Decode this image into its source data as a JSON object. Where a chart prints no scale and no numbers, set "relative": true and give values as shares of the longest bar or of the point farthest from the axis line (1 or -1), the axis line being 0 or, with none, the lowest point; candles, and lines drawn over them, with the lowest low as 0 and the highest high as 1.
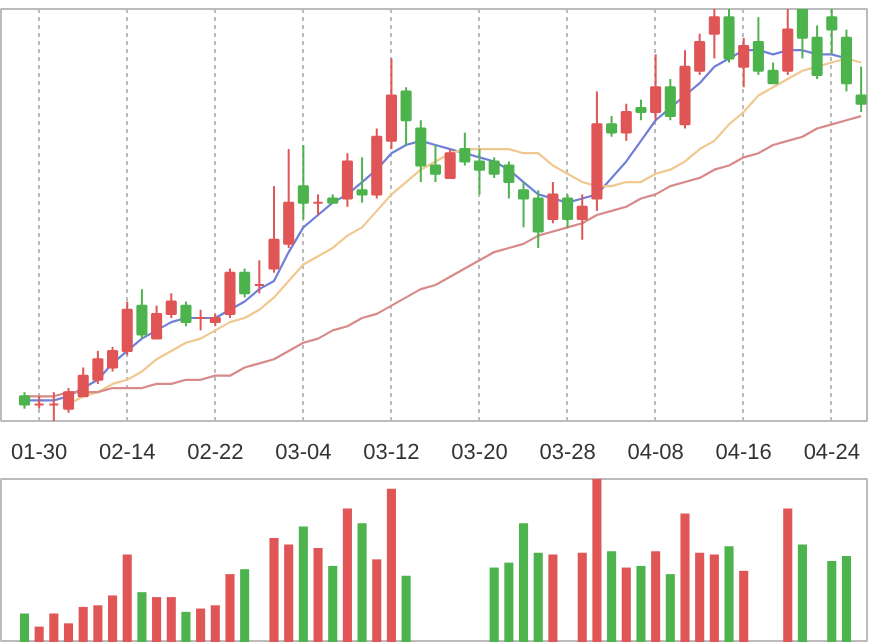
{
  "chart_data": [
    {
      "type": "candlestick",
      "relative": true,
      "tick_labels": "x",
      "grid": "x",
      "categories": [
        null,
        "01-30",
        null,
        null,
        null,
        null,
        null,
        "02-14",
        null,
        null,
        null,
        null,
        null,
        "02-22",
        null,
        null,
        null,
        null,
        null,
        "03-04",
        null,
        null,
        null,
        null,
        null,
        "03-12",
        null,
        null,
        null,
        null,
        null,
        "03-20",
        null,
        null,
        null,
        null,
        null,
        "03-28",
        null,
        null,
        null,
        null,
        null,
        "04-08",
        null,
        null,
        null,
        null,
        null,
        "04-16",
        null,
        null,
        null,
        null,
        null,
        "04-24",
        null,
        null
      ],
      "ohlc": [
        [
          0.06,
          0.07,
          0.03,
          0.04
        ],
        [
          0.04,
          0.06,
          0.03,
          0.04
        ],
        [
          0.04,
          0.07,
          0,
          0.04
        ],
        [
          0.03,
          0.08,
          0.02,
          0.07
        ],
        [
          0.06,
          0.13,
          0.06,
          0.11
        ],
        [
          0.1,
          0.17,
          0.09,
          0.15
        ],
        [
          0.13,
          0.18,
          0.12,
          0.17
        ],
        [
          0.17,
          0.29,
          0.16,
          0.27
        ],
        [
          0.28,
          0.32,
          0.2,
          0.21
        ],
        [
          0.2,
          0.28,
          0.2,
          0.26
        ],
        [
          0.26,
          0.31,
          0.25,
          0.29
        ],
        [
          0.28,
          0.29,
          0.23,
          0.24
        ],
        [
          0.25,
          0.27,
          0.22,
          0.25
        ],
        [
          0.24,
          0.26,
          0.23,
          0.25
        ],
        [
          0.26,
          0.37,
          0.25,
          0.36
        ],
        [
          0.36,
          0.37,
          0.3,
          0.31
        ],
        [
          0.33,
          0.39,
          0.31,
          0.33
        ],
        [
          0.37,
          0.57,
          0.36,
          0.44
        ],
        [
          0.43,
          0.66,
          0.42,
          0.53
        ],
        [
          0.57,
          0.67,
          0.49,
          0.53
        ],
        [
          0.53,
          0.55,
          0.5,
          0.53
        ],
        [
          0.54,
          0.55,
          0.53,
          0.53
        ],
        [
          0.54,
          0.65,
          0.52,
          0.63
        ],
        [
          0.56,
          0.64,
          0.53,
          0.55
        ],
        [
          0.55,
          0.71,
          0.54,
          0.69
        ],
        [
          0.68,
          0.88,
          0.66,
          0.79
        ],
        [
          0.8,
          0.81,
          0.67,
          0.73
        ],
        [
          0.71,
          0.73,
          0.58,
          0.62
        ],
        [
          0.62,
          0.67,
          0.58,
          0.6
        ],
        [
          0.59,
          0.66,
          0.59,
          0.65
        ],
        [
          0.66,
          0.7,
          0.62,
          0.63
        ],
        [
          0.63,
          0.66,
          0.55,
          0.61
        ],
        [
          0.63,
          0.64,
          0.59,
          0.6
        ],
        [
          0.62,
          0.63,
          0.54,
          0.58
        ],
        [
          0.56,
          0.58,
          0.47,
          0.54
        ],
        [
          0.54,
          0.56,
          0.42,
          0.46
        ],
        [
          0.49,
          0.58,
          0.48,
          0.55
        ],
        [
          0.54,
          0.55,
          0.47,
          0.49
        ],
        [
          0.49,
          0.55,
          0.44,
          0.52
        ],
        [
          0.54,
          0.8,
          0.51,
          0.72
        ],
        [
          0.72,
          0.74,
          0.69,
          0.7
        ],
        [
          0.7,
          0.77,
          0.68,
          0.75
        ],
        [
          0.76,
          0.78,
          0.73,
          0.75
        ],
        [
          0.75,
          0.89,
          0.73,
          0.81
        ],
        [
          0.81,
          0.83,
          0.73,
          0.74
        ],
        [
          0.72,
          0.9,
          0.71,
          0.86
        ],
        [
          0.85,
          0.94,
          0.84,
          0.92
        ],
        [
          0.94,
          1.0,
          0.88,
          0.98
        ],
        [
          0.98,
          1.0,
          0.87,
          0.88
        ],
        [
          0.86,
          0.93,
          0.81,
          0.91
        ],
        [
          0.92,
          0.98,
          0.84,
          0.85
        ],
        [
          0.85,
          0.87,
          0.82,
          0.82
        ],
        [
          0.85,
          1.0,
          0.84,
          0.95
        ],
        [
          1.0,
          1.0,
          0.88,
          0.93
        ],
        [
          0.93,
          0.96,
          0.83,
          0.84
        ],
        [
          0.98,
          1.0,
          0.89,
          0.95
        ],
        [
          0.93,
          0.95,
          0.8,
          0.82
        ],
        [
          0.79,
          0.86,
          0.75,
          0.77
        ]
      ],
      "colors": [
        "#4db34d",
        "#e05555",
        "#e05555",
        "#e05555",
        "#e05555",
        "#e05555",
        "#e05555",
        "#e05555",
        "#4db34d",
        "#e05555",
        "#e05555",
        "#4db34d",
        "#e05555",
        "#e05555",
        "#e05555",
        "#4db34d",
        "#e05555",
        "#e05555",
        "#e05555",
        "#4db34d",
        "#e05555",
        "#4db34d",
        "#e05555",
        "#4db34d",
        "#e05555",
        "#e05555",
        "#4db34d",
        "#4db34d",
        "#4db34d",
        "#e05555",
        "#4db34d",
        "#4db34d",
        "#4db34d",
        "#4db34d",
        "#4db34d",
        "#4db34d",
        "#e05555",
        "#4db34d",
        "#e05555",
        "#e05555",
        "#4db34d",
        "#e05555",
        "#4db34d",
        "#e05555",
        "#4db34d",
        "#e05555",
        "#e05555",
        "#e05555",
        "#4db34d",
        "#e05555",
        "#4db34d",
        "#4db34d",
        "#e05555",
        "#4db34d",
        "#4db34d",
        "#4db34d",
        "#4db34d",
        "#4db34d"
      ],
      "series": [
        {
          "type": "line",
          "color": "#7080d8",
          "values": [
            0.05,
            0.05,
            0.05,
            0.06,
            0.08,
            0.1,
            0.14,
            0.17,
            0.2,
            0.22,
            0.24,
            0.25,
            0.25,
            0.25,
            0.27,
            0.29,
            0.32,
            0.34,
            0.41,
            0.47,
            0.5,
            0.53,
            0.55,
            0.58,
            0.61,
            0.65,
            0.67,
            0.68,
            0.67,
            0.66,
            0.65,
            0.64,
            0.63,
            0.61,
            0.58,
            0.55,
            0.54,
            0.53,
            0.54,
            0.55,
            0.59,
            0.63,
            0.68,
            0.73,
            0.76,
            0.79,
            0.82,
            0.86,
            0.88,
            0.9,
            0.9,
            0.89,
            0.9,
            0.9,
            0.89,
            0.89,
            0.88,
            null
          ]
        },
        {
          "type": "line",
          "color": "#f0c890",
          "values": [
            null,
            null,
            null,
            0.04,
            0.06,
            0.07,
            0.09,
            0.1,
            0.12,
            0.15,
            0.17,
            0.19,
            0.2,
            0.22,
            0.24,
            0.25,
            0.27,
            0.3,
            0.34,
            0.38,
            0.4,
            0.42,
            0.45,
            0.47,
            0.51,
            0.55,
            0.58,
            0.61,
            0.63,
            0.65,
            0.66,
            0.66,
            0.66,
            0.66,
            0.65,
            0.65,
            0.62,
            0.6,
            0.58,
            0.57,
            0.57,
            0.58,
            0.58,
            0.6,
            0.61,
            0.63,
            0.66,
            0.68,
            0.72,
            0.75,
            0.79,
            0.81,
            0.83,
            0.85,
            0.86,
            0.87,
            0.88,
            0.87
          ]
        },
        {
          "type": "line",
          "color": "#d88a8a",
          "values": [
            0.06,
            0.06,
            0.06,
            0.07,
            0.07,
            0.07,
            0.08,
            0.08,
            0.08,
            0.09,
            0.09,
            0.1,
            0.1,
            0.11,
            0.11,
            0.13,
            0.14,
            0.15,
            0.17,
            0.19,
            0.2,
            0.22,
            0.23,
            0.25,
            0.26,
            0.28,
            0.3,
            0.32,
            0.33,
            0.35,
            0.37,
            0.39,
            0.41,
            0.42,
            0.43,
            0.45,
            0.46,
            0.47,
            0.48,
            0.5,
            0.51,
            0.52,
            0.54,
            0.55,
            0.57,
            0.58,
            0.59,
            0.61,
            0.62,
            0.64,
            0.65,
            0.67,
            0.68,
            0.69,
            0.71,
            0.72,
            0.73,
            0.74
          ]
        }
      ]
    },
    {
      "type": "bar",
      "relative": true,
      "tick_labels": false,
      "grid": "x",
      "categories": [
        null,
        null,
        null,
        null,
        null,
        null,
        null,
        null,
        null,
        null,
        null,
        null,
        null,
        null,
        null,
        null,
        null,
        null,
        null,
        null,
        null,
        null,
        null,
        null,
        null,
        null,
        null,
        null,
        null,
        null,
        null,
        null,
        null,
        null,
        null,
        null,
        null,
        null,
        null,
        null,
        null,
        null,
        null,
        null,
        null,
        null,
        null,
        null,
        null,
        null,
        null,
        null,
        null,
        null,
        null,
        null,
        null,
        null
      ],
      "values": [
        0.18,
        0.1,
        0.18,
        0.12,
        0.22,
        0.23,
        0.29,
        0.54,
        0.31,
        0.28,
        0.28,
        0.19,
        0.21,
        0.23,
        0.42,
        0.45,
        null,
        0.64,
        0.6,
        0.71,
        0.58,
        0.47,
        0.82,
        0.73,
        0.51,
        0.94,
        0.41,
        null,
        null,
        null,
        null,
        null,
        0.46,
        0.49,
        0.73,
        0.55,
        0.54,
        null,
        0.55,
        1.0,
        0.56,
        0.46,
        0.47,
        0.56,
        0.42,
        0.79,
        0.55,
        0.54,
        0.59,
        0.44,
        null,
        null,
        0.82,
        0.6,
        null,
        0.5,
        0.53,
        null
      ],
      "colors": [
        "#4db34d",
        "#e05555",
        "#e05555",
        "#e05555",
        "#e05555",
        "#e05555",
        "#e05555",
        "#e05555",
        "#4db34d",
        "#e05555",
        "#e05555",
        "#4db34d",
        "#e05555",
        "#e05555",
        "#e05555",
        "#4db34d",
        "#e05555",
        "#e05555",
        "#e05555",
        "#4db34d",
        "#e05555",
        "#4db34d",
        "#e05555",
        "#4db34d",
        "#e05555",
        "#e05555",
        "#4db34d",
        "#4db34d",
        "#4db34d",
        "#e05555",
        "#4db34d",
        "#4db34d",
        "#4db34d",
        "#4db34d",
        "#4db34d",
        "#4db34d",
        "#e05555",
        "#4db34d",
        "#e05555",
        "#e05555",
        "#4db34d",
        "#e05555",
        "#4db34d",
        "#e05555",
        "#4db34d",
        "#e05555",
        "#e05555",
        "#e05555",
        "#4db34d",
        "#e05555",
        "#4db34d",
        "#4db34d",
        "#e05555",
        "#4db34d",
        "#4db34d",
        "#4db34d",
        "#4db34d",
        "#4db34d"
      ]
    }
  ]
}
